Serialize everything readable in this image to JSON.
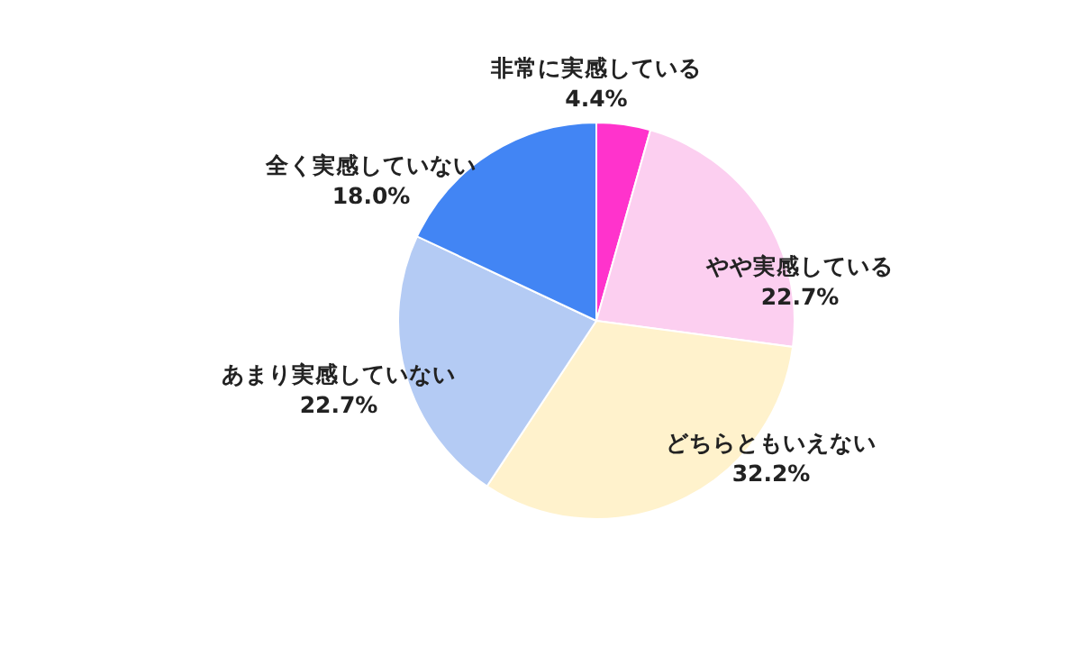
{
  "chart_data": {
    "type": "pie",
    "categories": [
      "非常に実感している",
      "やや実感している",
      "どちらともいえない",
      "あまり実感していない",
      "全く実感していない"
    ],
    "values": [
      4.4,
      22.7,
      32.2,
      22.7,
      18.0
    ],
    "value_labels": [
      "4.4%",
      "22.7%",
      "32.2%",
      "22.7%",
      "18.0%"
    ],
    "colors": [
      "#ff33cc",
      "#fccff0",
      "#fff2cc",
      "#b4cbf4",
      "#4285f4"
    ]
  }
}
